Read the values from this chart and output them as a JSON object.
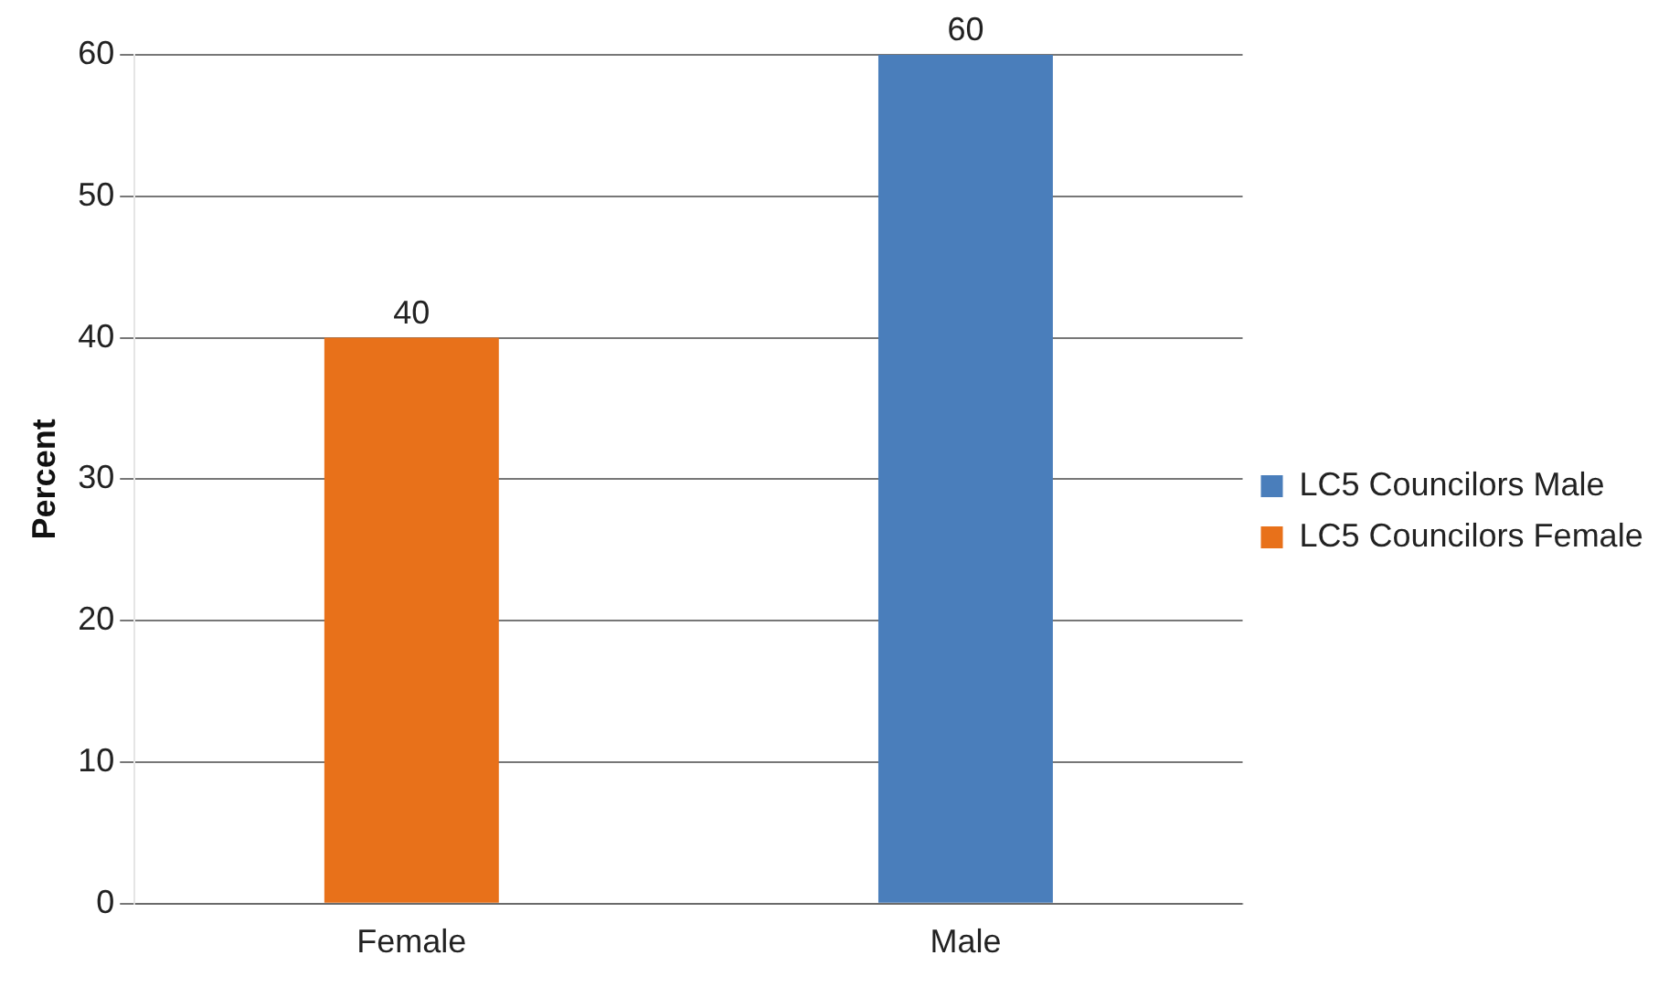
{
  "chart_data": {
    "type": "bar",
    "ylabel": "Percent",
    "categories": [
      "Female",
      "Male"
    ],
    "series": [
      {
        "name": "LC5 Councilors Male",
        "color": "#4a7ebb",
        "values": [
          null,
          60
        ]
      },
      {
        "name": "LC5 Councilors Female",
        "color": "#e8711a",
        "values": [
          40,
          null
        ]
      }
    ],
    "ylim": [
      0,
      60
    ],
    "yticks": [
      0,
      10,
      20,
      30,
      40,
      50,
      60
    ],
    "grid": "y",
    "legend": "right",
    "data_labels": true
  }
}
